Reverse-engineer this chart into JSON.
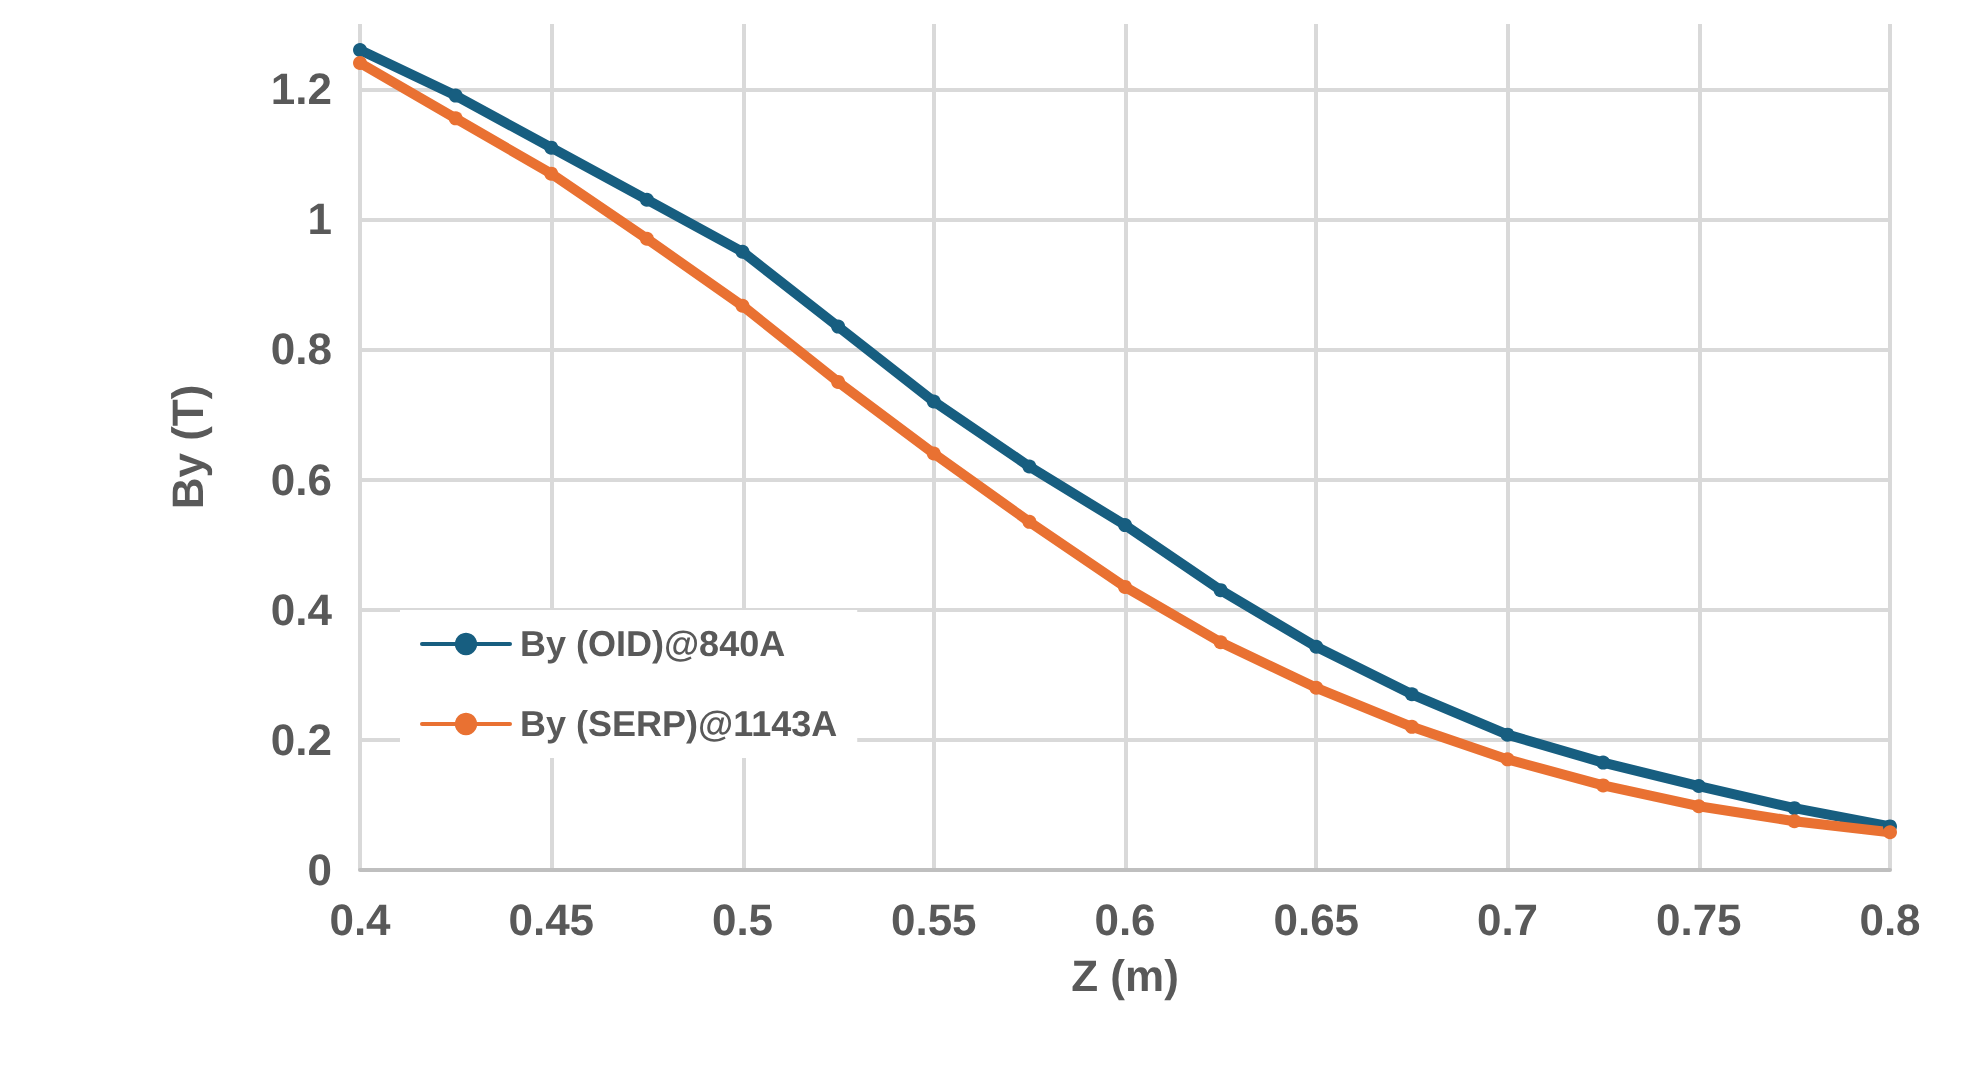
{
  "chart_data": {
    "type": "line",
    "xlabel": "Z (m)",
    "ylabel": "By (T)",
    "x": [
      0.4,
      0.425,
      0.45,
      0.475,
      0.5,
      0.525,
      0.55,
      0.575,
      0.6,
      0.625,
      0.65,
      0.675,
      0.7,
      0.725,
      0.75,
      0.775,
      0.8
    ],
    "series": [
      {
        "name": "By (OID)@840A",
        "color": "#175e80",
        "values": [
          1.26,
          1.19,
          1.11,
          1.03,
          0.95,
          0.835,
          0.72,
          0.62,
          0.53,
          0.43,
          0.343,
          0.27,
          0.208,
          0.165,
          0.129,
          0.095,
          0.067
        ]
      },
      {
        "name": "By (SERP)@1143A",
        "color": "#e97132",
        "values": [
          1.24,
          1.155,
          1.07,
          0.97,
          0.867,
          0.75,
          0.64,
          0.535,
          0.435,
          0.35,
          0.28,
          0.22,
          0.17,
          0.13,
          0.098,
          0.075,
          0.058
        ]
      }
    ],
    "xlim": [
      0.4,
      0.8
    ],
    "xticks": [
      0.4,
      0.45,
      0.5,
      0.55,
      0.6,
      0.65,
      0.7,
      0.75,
      0.8
    ],
    "ylim": [
      0,
      1.3
    ],
    "yticks": [
      0,
      0.2,
      0.4,
      0.6,
      0.8,
      1,
      1.2
    ],
    "grid": true,
    "legend": "left",
    "marker": "circle",
    "line_style": "solid"
  }
}
